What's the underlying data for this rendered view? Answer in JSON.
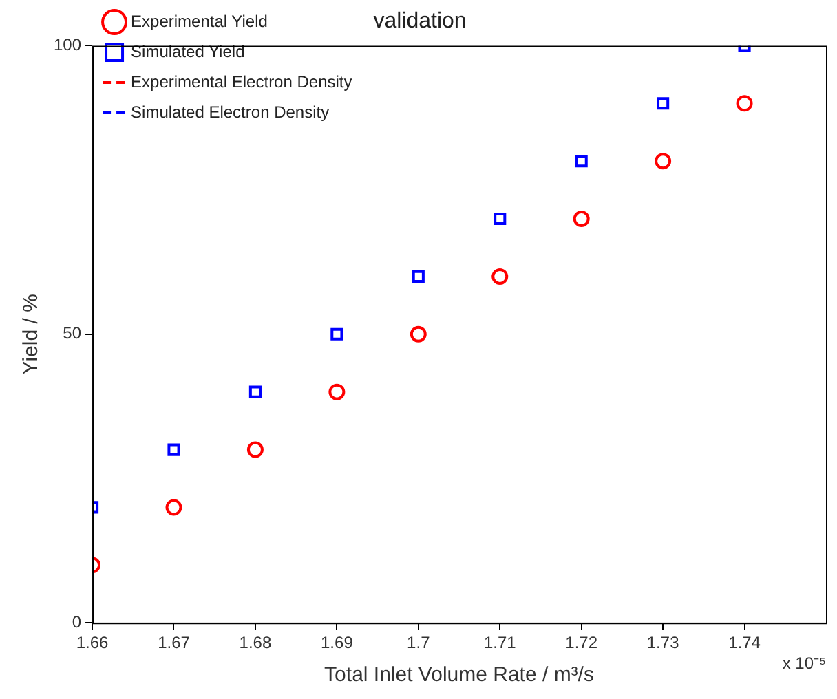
{
  "chart_data": {
    "type": "scatter",
    "title": "validation",
    "xlabel": "Total Inlet Volume Rate / m³/s",
    "ylabel": "Yield / %",
    "annotations": [
      "x 10⁻⁵"
    ],
    "x": [
      1.66,
      1.67,
      1.68,
      1.69,
      1.7,
      1.71,
      1.72,
      1.73,
      1.74
    ],
    "xlim": [
      1.66,
      1.75
    ],
    "xticks": [
      1.66,
      1.67,
      1.68,
      1.69,
      1.7,
      1.71,
      1.72,
      1.73,
      1.74
    ],
    "ylim": [
      0,
      100
    ],
    "yticks": [
      0,
      50,
      100
    ],
    "grid": false,
    "legend": "top left",
    "series": [
      {
        "name": "Experimental Yield",
        "color": "#ff0000",
        "marker": "circle",
        "values": [
          10,
          20,
          30,
          40,
          50,
          60,
          70,
          80,
          90
        ]
      },
      {
        "name": "Simulated Yield",
        "color": "#0000ff",
        "marker": "square",
        "values": [
          20,
          30,
          40,
          50,
          60,
          70,
          80,
          90,
          100
        ]
      },
      {
        "name": "Experimental Electron Density",
        "type": "line",
        "color": "#ff0000",
        "line_style": "dashed",
        "values": [
          null,
          null,
          null,
          null,
          null,
          null,
          null,
          null,
          null
        ]
      },
      {
        "name": "Simulated Electron Density",
        "type": "line",
        "color": "#0000ff",
        "line_style": "dashed",
        "values": [
          null,
          null,
          null,
          null,
          null,
          null,
          null,
          null,
          null
        ]
      }
    ]
  }
}
